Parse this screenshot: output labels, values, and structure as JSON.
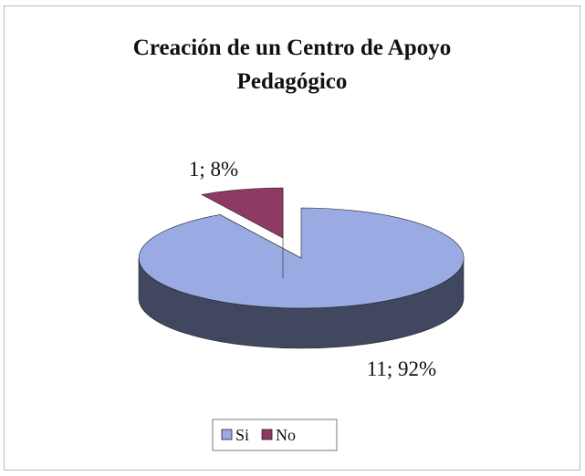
{
  "chart_data": {
    "type": "pie3d",
    "title": "Creación de un Centro de Apoyo Pedagógico",
    "categories": [
      "Si",
      "No"
    ],
    "values": [
      11,
      1
    ],
    "value_labels": [
      "11; 92%",
      "1; 8%"
    ],
    "colors": [
      "#9aabe3",
      "#8e3a63"
    ],
    "legend": "bottom"
  }
}
